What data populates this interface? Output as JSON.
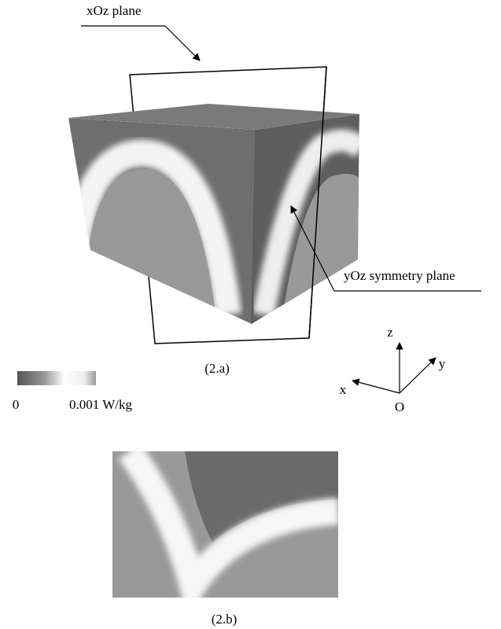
{
  "figure_a": {
    "plane_label": "xOz plane",
    "symmetry_label": "yOz symmetry plane",
    "caption": "(2.a)",
    "colorbar": {
      "min_label": "0",
      "max_label": "0.001 W/kg"
    },
    "axes": {
      "z": "z",
      "y": "y",
      "x": "x",
      "origin": "O"
    }
  },
  "figure_b": {
    "caption": "(2.b)"
  }
}
